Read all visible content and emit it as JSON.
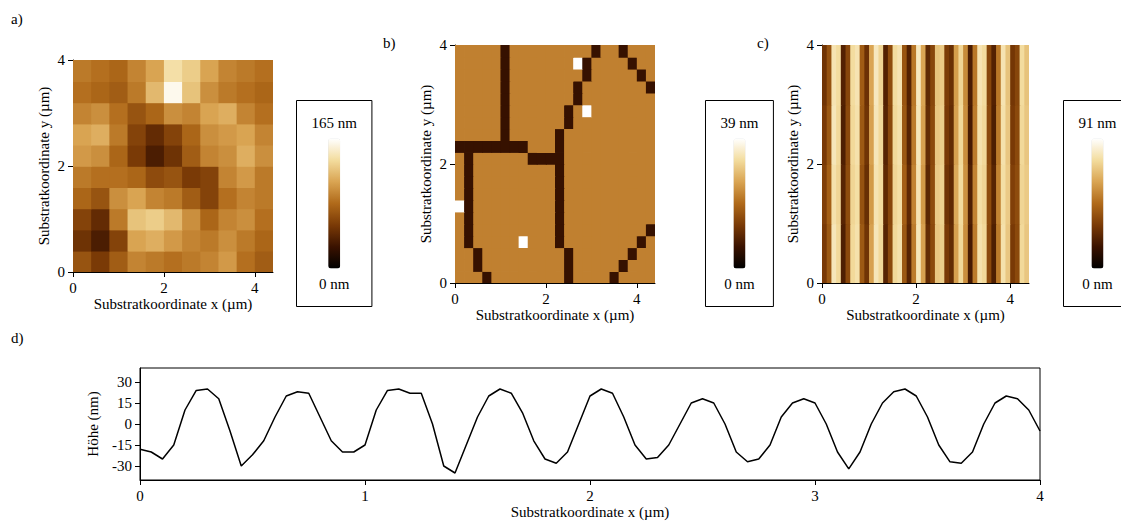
{
  "chart_data": [
    {
      "type": "heatmap",
      "label": "a)",
      "x_label": "Substratkoordinate x (µm)",
      "y_label": "Substratkoordinate y (µm)",
      "xlim": [
        0,
        4.4
      ],
      "ylim": [
        0,
        4
      ],
      "xticks": [
        0,
        2,
        4
      ],
      "yticks": [
        0,
        2,
        4
      ],
      "colorbar": {
        "range": [
          0,
          165
        ],
        "ticks": [
          {
            "value": 0,
            "label": "0 nm"
          },
          {
            "value": 165,
            "label": "165 nm"
          }
        ]
      },
      "x": [
        0.2,
        0.6,
        1.0,
        1.4,
        1.8,
        2.2,
        2.6,
        3.0,
        3.4,
        3.8,
        4.2
      ],
      "y": [
        0.2,
        0.6,
        1.0,
        1.4,
        1.8,
        2.2,
        2.6,
        3.0,
        3.4,
        3.8
      ],
      "cells": [
        [
          70,
          55,
          75,
          95,
          90,
          85,
          90,
          95,
          105,
          85,
          75
        ],
        [
          50,
          35,
          60,
          110,
          115,
          105,
          95,
          90,
          100,
          90,
          80
        ],
        [
          60,
          45,
          90,
          125,
          130,
          120,
          100,
          80,
          95,
          100,
          85
        ],
        [
          80,
          70,
          100,
          110,
          95,
          90,
          75,
          60,
          85,
          95,
          90
        ],
        [
          90,
          85,
          85,
          80,
          65,
          70,
          55,
          60,
          95,
          105,
          90
        ],
        [
          105,
          100,
          80,
          55,
          35,
          50,
          75,
          95,
          100,
          115,
          100
        ],
        [
          110,
          115,
          90,
          60,
          45,
          60,
          80,
          100,
          105,
          110,
          95
        ],
        [
          95,
          100,
          85,
          70,
          80,
          100,
          95,
          110,
          115,
          95,
          85
        ],
        [
          85,
          80,
          75,
          90,
          120,
          160,
          125,
          100,
          90,
          85,
          80
        ],
        [
          90,
          85,
          80,
          95,
          110,
          140,
          130,
          110,
          95,
          90,
          85
        ]
      ]
    },
    {
      "type": "heatmap",
      "label": "b)",
      "x_label": "Substratkoordinate x (µm)",
      "y_label": "Substratkoordinate y (µm)",
      "xlim": [
        0,
        4.4
      ],
      "ylim": [
        0,
        4
      ],
      "xticks": [
        0,
        2,
        4
      ],
      "yticks": [
        0,
        2,
        4
      ],
      "colorbar": {
        "range": [
          0,
          39
        ],
        "ticks": [
          {
            "value": 0,
            "label": "0 nm"
          },
          {
            "value": 39,
            "label": "39 nm"
          }
        ]
      },
      "x": [
        0.1,
        0.3,
        0.5,
        0.7,
        0.9,
        1.1,
        1.3,
        1.5,
        1.7,
        1.9,
        2.1,
        2.3,
        2.5,
        2.7,
        2.9,
        3.1,
        3.3,
        3.5,
        3.7,
        3.9,
        4.1,
        4.3
      ],
      "y": [
        0.1,
        0.3,
        0.5,
        0.7,
        0.9,
        1.1,
        1.3,
        1.5,
        1.7,
        1.9,
        2.1,
        2.3,
        2.5,
        2.7,
        2.9,
        3.1,
        3.3,
        3.5,
        3.7,
        3.9
      ],
      "cells": [
        [
          22,
          22,
          22,
          6,
          22,
          22,
          22,
          22,
          22,
          22,
          22,
          22,
          6,
          22,
          22,
          22,
          22,
          6,
          22,
          22,
          22,
          22
        ],
        [
          22,
          22,
          6,
          22,
          22,
          22,
          22,
          22,
          22,
          22,
          22,
          22,
          6,
          22,
          22,
          22,
          22,
          22,
          6,
          22,
          22,
          22
        ],
        [
          22,
          22,
          6,
          22,
          22,
          22,
          22,
          22,
          22,
          22,
          22,
          22,
          6,
          22,
          22,
          22,
          22,
          22,
          22,
          6,
          22,
          22
        ],
        [
          22,
          6,
          22,
          22,
          22,
          22,
          22,
          39,
          22,
          22,
          22,
          6,
          22,
          22,
          22,
          22,
          22,
          22,
          22,
          22,
          6,
          22
        ],
        [
          22,
          6,
          22,
          22,
          22,
          22,
          22,
          22,
          22,
          22,
          22,
          6,
          22,
          22,
          22,
          22,
          22,
          22,
          22,
          22,
          22,
          6
        ],
        [
          22,
          6,
          22,
          22,
          22,
          22,
          22,
          22,
          22,
          22,
          22,
          6,
          22,
          22,
          22,
          22,
          22,
          22,
          22,
          22,
          22,
          22
        ],
        [
          39,
          6,
          22,
          22,
          22,
          22,
          22,
          22,
          22,
          22,
          22,
          6,
          22,
          22,
          22,
          22,
          22,
          22,
          22,
          22,
          22,
          22
        ],
        [
          22,
          6,
          22,
          22,
          22,
          22,
          22,
          22,
          22,
          22,
          22,
          6,
          22,
          22,
          22,
          22,
          22,
          22,
          22,
          22,
          22,
          22
        ],
        [
          22,
          6,
          22,
          22,
          22,
          22,
          22,
          22,
          22,
          22,
          22,
          6,
          22,
          22,
          22,
          22,
          22,
          22,
          22,
          22,
          22,
          22
        ],
        [
          22,
          6,
          22,
          22,
          22,
          22,
          22,
          22,
          22,
          22,
          22,
          6,
          22,
          22,
          22,
          22,
          22,
          22,
          22,
          22,
          22,
          22
        ],
        [
          22,
          6,
          22,
          22,
          22,
          22,
          22,
          22,
          6,
          6,
          6,
          6,
          22,
          22,
          22,
          22,
          22,
          22,
          22,
          22,
          22,
          22
        ],
        [
          6,
          6,
          6,
          6,
          6,
          6,
          6,
          6,
          22,
          22,
          22,
          6,
          22,
          22,
          22,
          22,
          22,
          22,
          22,
          22,
          22,
          22
        ],
        [
          22,
          22,
          22,
          22,
          22,
          6,
          22,
          22,
          22,
          22,
          22,
          6,
          22,
          22,
          22,
          22,
          22,
          22,
          22,
          22,
          22,
          22
        ],
        [
          22,
          22,
          22,
          22,
          22,
          6,
          22,
          22,
          22,
          22,
          22,
          22,
          6,
          22,
          22,
          22,
          22,
          22,
          22,
          22,
          22,
          22
        ],
        [
          22,
          22,
          22,
          22,
          22,
          6,
          22,
          22,
          22,
          22,
          22,
          22,
          6,
          22,
          39,
          22,
          22,
          22,
          22,
          22,
          22,
          22
        ],
        [
          22,
          22,
          22,
          22,
          22,
          6,
          22,
          22,
          22,
          22,
          22,
          22,
          22,
          6,
          22,
          22,
          22,
          22,
          22,
          22,
          22,
          22
        ],
        [
          22,
          22,
          22,
          22,
          22,
          6,
          22,
          22,
          22,
          22,
          22,
          22,
          22,
          6,
          22,
          22,
          22,
          22,
          22,
          22,
          22,
          6
        ],
        [
          22,
          22,
          22,
          22,
          22,
          6,
          22,
          22,
          22,
          22,
          22,
          22,
          22,
          22,
          6,
          22,
          22,
          22,
          22,
          22,
          6,
          22
        ],
        [
          22,
          22,
          22,
          22,
          22,
          6,
          22,
          22,
          22,
          22,
          22,
          22,
          22,
          39,
          6,
          22,
          22,
          22,
          22,
          6,
          22,
          22
        ],
        [
          22,
          22,
          22,
          22,
          22,
          6,
          22,
          22,
          22,
          22,
          22,
          22,
          22,
          22,
          22,
          6,
          22,
          22,
          6,
          22,
          22,
          22
        ]
      ]
    },
    {
      "type": "heatmap",
      "label": "c)",
      "x_label": "Substratkoordinate x (µm)",
      "y_label": "Substratkoordinate y (µm)",
      "xlim": [
        0,
        4.4
      ],
      "ylim": [
        0,
        4
      ],
      "xticks": [
        0,
        2,
        4
      ],
      "yticks": [
        0,
        2,
        4
      ],
      "colorbar": {
        "range": [
          0,
          91
        ],
        "ticks": [
          {
            "value": 0,
            "label": "0 nm"
          },
          {
            "value": 91,
            "label": "91 nm"
          }
        ]
      },
      "x": [
        0.05,
        0.15,
        0.25,
        0.35,
        0.45,
        0.55,
        0.65,
        0.75,
        0.85,
        0.95,
        1.05,
        1.15,
        1.25,
        1.35,
        1.45,
        1.55,
        1.65,
        1.75,
        1.85,
        1.95,
        2.05,
        2.15,
        2.25,
        2.35,
        2.45,
        2.55,
        2.65,
        2.75,
        2.85,
        2.95,
        3.05,
        3.15,
        3.25,
        3.35,
        3.45,
        3.55,
        3.65,
        3.75,
        3.85,
        3.95,
        4.05,
        4.15,
        4.25,
        4.35
      ],
      "y": [
        0.5,
        1.5,
        2.5,
        3.5
      ],
      "cells": [
        [
          30,
          40,
          80,
          75,
          20,
          35,
          75,
          78,
          40,
          28,
          60,
          80,
          75,
          22,
          35,
          75,
          78,
          40,
          22,
          50,
          80,
          60,
          25,
          35,
          70,
          72,
          30,
          25,
          60,
          75,
          55,
          18,
          50,
          78,
          75,
          35,
          20,
          50,
          78,
          70,
          30,
          35,
          75,
          70
        ],
        [
          32,
          42,
          78,
          74,
          22,
          36,
          74,
          77,
          38,
          26,
          58,
          79,
          76,
          24,
          34,
          74,
          77,
          42,
          24,
          52,
          79,
          58,
          23,
          36,
          71,
          73,
          28,
          24,
          62,
          76,
          56,
          20,
          52,
          77,
          74,
          36,
          22,
          52,
          77,
          71,
          32,
          36,
          74,
          71
        ],
        [
          30,
          40,
          80,
          75,
          20,
          35,
          75,
          78,
          40,
          28,
          60,
          80,
          75,
          22,
          35,
          75,
          78,
          40,
          22,
          50,
          80,
          60,
          25,
          35,
          70,
          72,
          30,
          25,
          60,
          75,
          55,
          18,
          50,
          78,
          75,
          35,
          20,
          50,
          78,
          70,
          30,
          35,
          75,
          70
        ],
        [
          28,
          38,
          79,
          76,
          21,
          34,
          76,
          79,
          41,
          27,
          61,
          81,
          74,
          21,
          36,
          76,
          79,
          39,
          21,
          49,
          81,
          61,
          24,
          34,
          69,
          71,
          31,
          26,
          59,
          74,
          54,
          19,
          49,
          79,
          76,
          34,
          21,
          49,
          79,
          69,
          29,
          34,
          76,
          69
        ]
      ]
    },
    {
      "type": "line",
      "label": "d)",
      "x_label": "Substratkoordinate x (µm)",
      "y_label": "Höhe (nm)",
      "xlim": [
        0,
        4
      ],
      "ylim": [
        -40,
        40
      ],
      "xticks": [
        0,
        1,
        2,
        3,
        4
      ],
      "yticks": [
        -30,
        -15,
        0,
        15,
        30
      ],
      "color": "#000000",
      "x": [
        0,
        0.05,
        0.1,
        0.15,
        0.2,
        0.25,
        0.3,
        0.35,
        0.4,
        0.45,
        0.5,
        0.55,
        0.6,
        0.65,
        0.7,
        0.75,
        0.8,
        0.85,
        0.9,
        0.95,
        1.0,
        1.05,
        1.1,
        1.15,
        1.2,
        1.25,
        1.3,
        1.35,
        1.4,
        1.45,
        1.5,
        1.55,
        1.6,
        1.65,
        1.7,
        1.75,
        1.8,
        1.85,
        1.9,
        1.95,
        2.0,
        2.05,
        2.1,
        2.15,
        2.2,
        2.25,
        2.3,
        2.35,
        2.4,
        2.45,
        2.5,
        2.55,
        2.6,
        2.65,
        2.7,
        2.75,
        2.8,
        2.85,
        2.9,
        2.95,
        3.0,
        3.05,
        3.1,
        3.15,
        3.2,
        3.25,
        3.3,
        3.35,
        3.4,
        3.45,
        3.5,
        3.55,
        3.6,
        3.65,
        3.7,
        3.75,
        3.8,
        3.85,
        3.9,
        3.95,
        4.0
      ],
      "values": [
        -18,
        -20,
        -25,
        -15,
        10,
        24,
        25,
        18,
        -5,
        -30,
        -22,
        -12,
        5,
        20,
        23,
        22,
        5,
        -12,
        -20,
        -20,
        -15,
        10,
        24,
        25,
        22,
        22,
        0,
        -30,
        -35,
        -15,
        5,
        20,
        25,
        22,
        8,
        -12,
        -25,
        -28,
        -20,
        0,
        20,
        25,
        22,
        5,
        -15,
        -25,
        -24,
        -15,
        0,
        15,
        18,
        15,
        0,
        -20,
        -27,
        -25,
        -15,
        5,
        15,
        18,
        15,
        0,
        -20,
        -32,
        -20,
        0,
        15,
        23,
        25,
        20,
        5,
        -15,
        -27,
        -28,
        -20,
        0,
        15,
        20,
        18,
        10,
        -5
      ]
    }
  ]
}
